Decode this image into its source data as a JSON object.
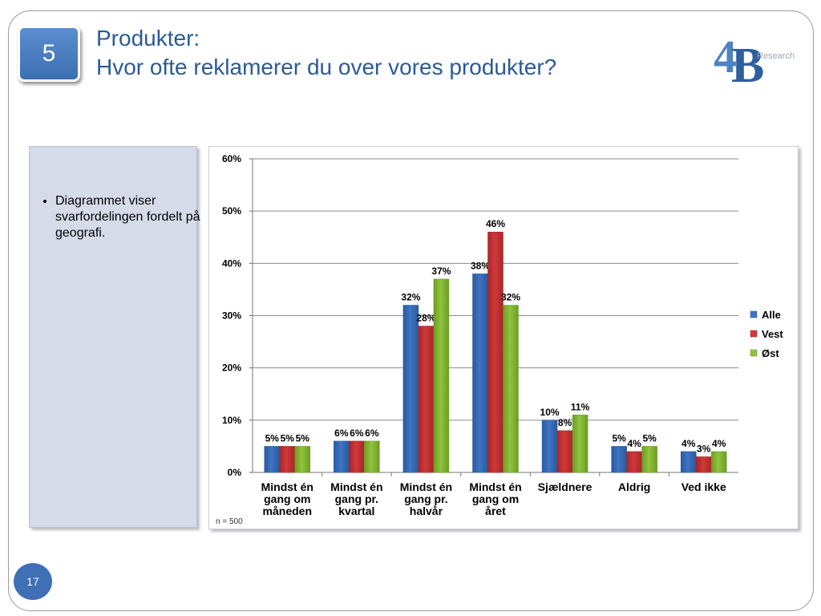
{
  "slide": {
    "number_box": "5",
    "title_line1": "Produkter:",
    "title_line2": "Hvor ofte reklamerer du over vores produkter?",
    "logo_text": "Research",
    "page_number": "17",
    "bullet": "Diagrammet viser svarfordelingen fordelt på geografi."
  },
  "colors": {
    "title": "#2a5b95",
    "series_alle": "#3d74c4",
    "series_vest": "#d0393b",
    "series_ost": "#8fc43c"
  },
  "chart_data": {
    "type": "bar",
    "categories": [
      [
        "Mindst én",
        "gang om",
        "måneden"
      ],
      [
        "Mindst én",
        "gang pr.",
        "kvartal"
      ],
      [
        "Mindst én",
        "gang pr.",
        "halvår"
      ],
      [
        "Mindst én",
        "gang om",
        "året"
      ],
      [
        "Sjældnere"
      ],
      [
        "Aldrig"
      ],
      [
        "Ved ikke"
      ]
    ],
    "series": [
      {
        "name": "Alle",
        "values": [
          5,
          6,
          32,
          38,
          10,
          5,
          4
        ]
      },
      {
        "name": "Vest",
        "values": [
          5,
          6,
          28,
          46,
          8,
          4,
          3
        ]
      },
      {
        "name": "Øst",
        "values": [
          5,
          6,
          37,
          32,
          11,
          5,
          4
        ]
      }
    ],
    "value_labels": [
      [
        "5%",
        "6%",
        "32%",
        "38%",
        "10%",
        "5%",
        "4%"
      ],
      [
        "5%",
        "6%",
        "28%",
        "46%",
        "8%",
        "4%",
        "3%"
      ],
      [
        "5%",
        "6%",
        "37%",
        "32%",
        "11%",
        "5%",
        "4%"
      ]
    ],
    "y_ticks": [
      "0%",
      "10%",
      "20%",
      "30%",
      "40%",
      "50%",
      "60%"
    ],
    "ylim": [
      0,
      60
    ],
    "grid": true,
    "legend_position": "right",
    "note": "n = 500"
  }
}
